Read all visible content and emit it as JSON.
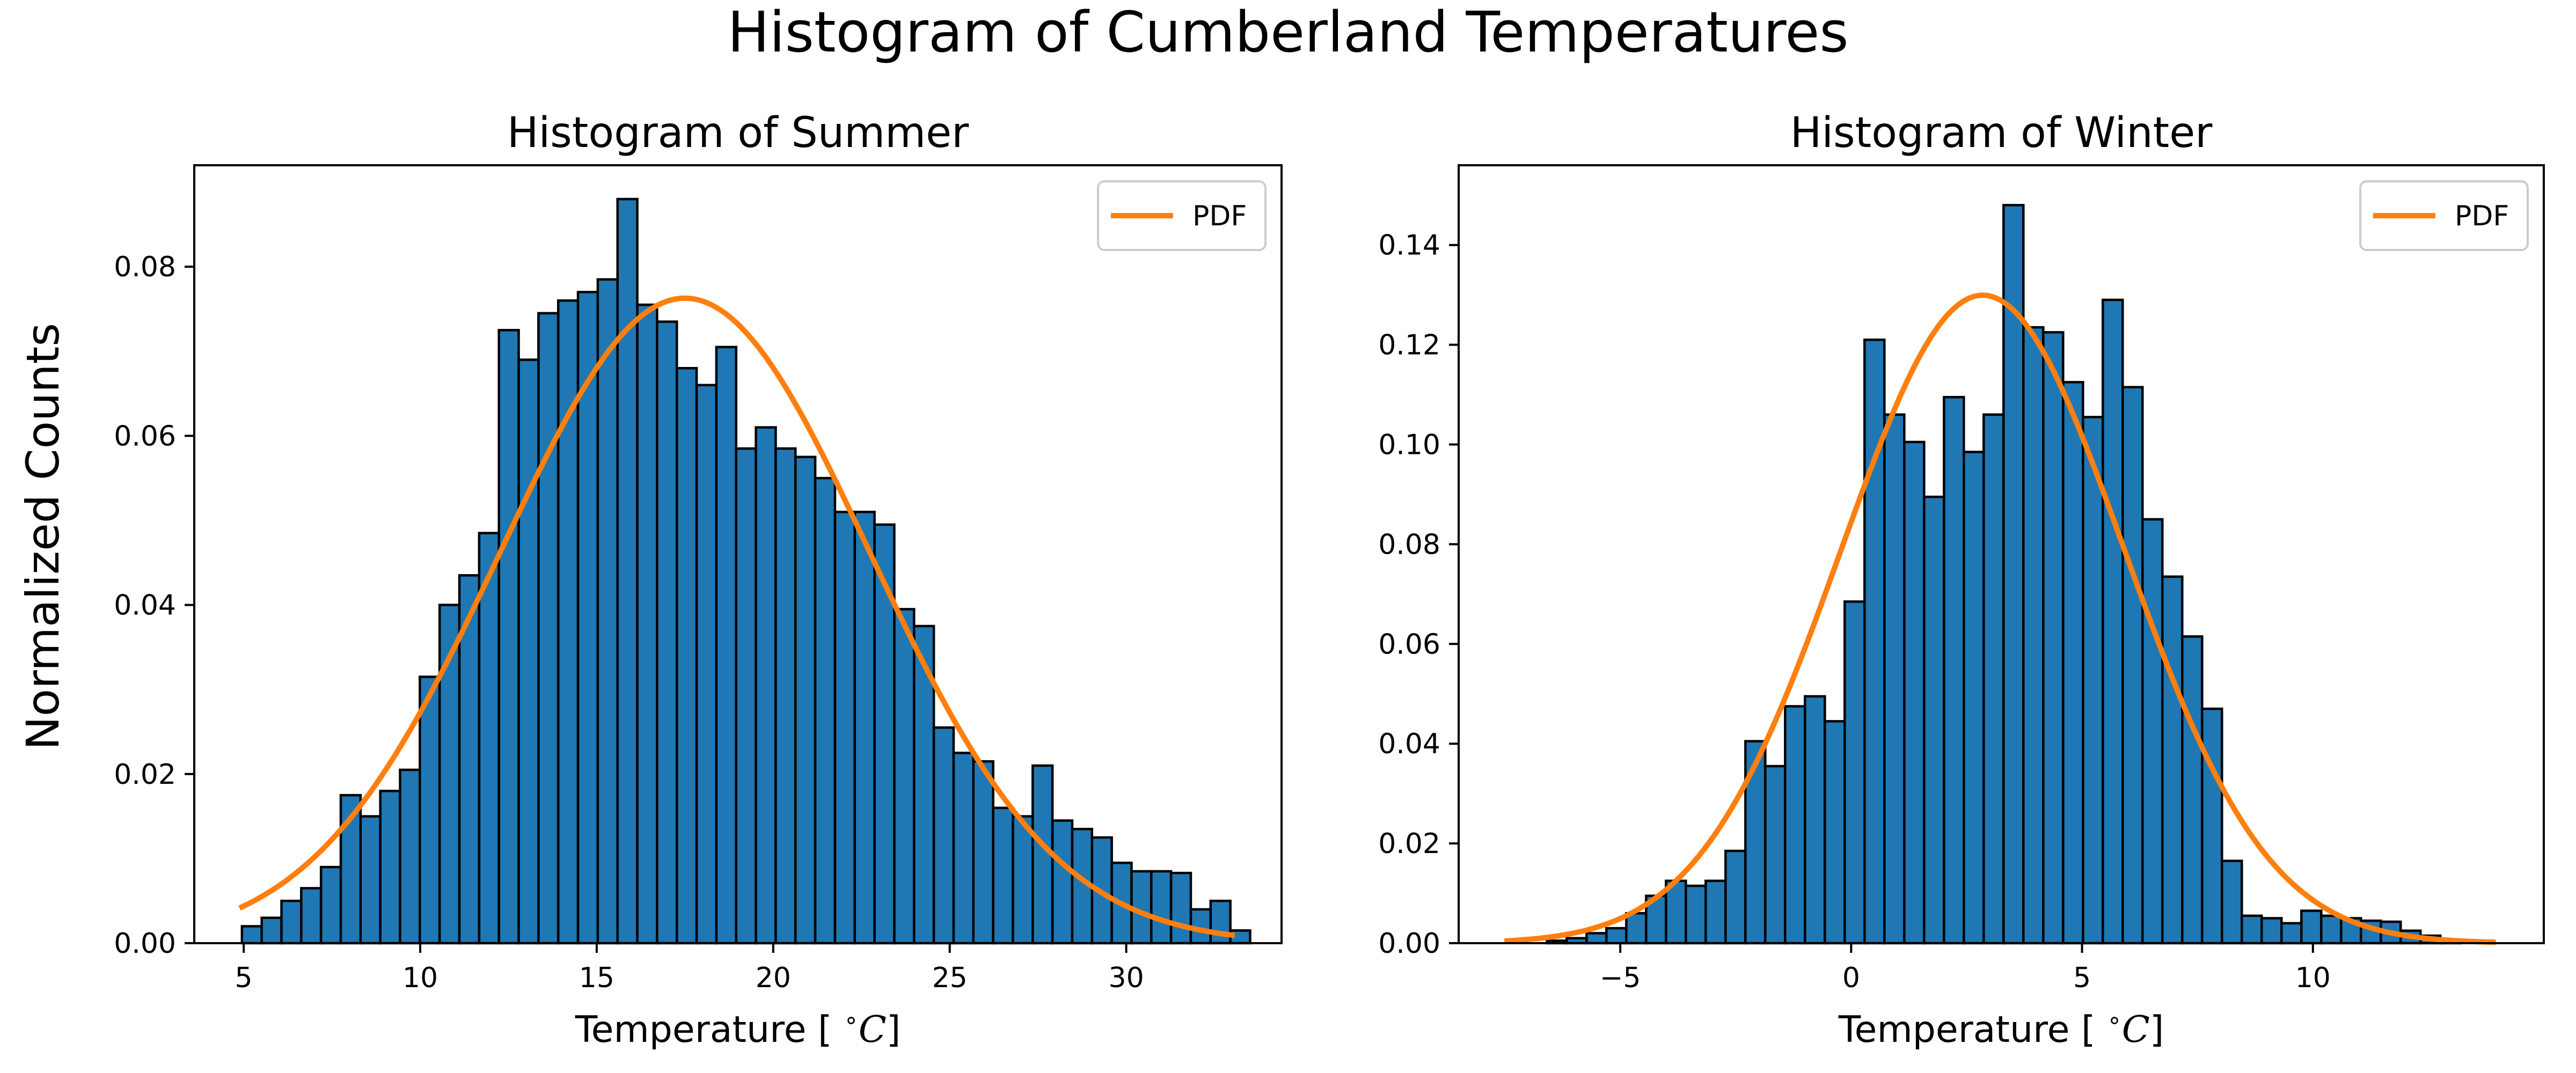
{
  "figure_title": "Histogram of Cumberland Temperatures",
  "shared_ylabel": "Normalized Counts",
  "colors": {
    "bar_fill": "#1f77b4",
    "bar_edge": "#000000",
    "pdf_line": "#ff7f0e"
  },
  "chart_data": [
    {
      "type": "bar",
      "title": "Histogram of Summer",
      "xlabel": "Temperature [$^\\circ C$]",
      "xlabel_display": "Temperature [ ",
      "xlabel_sup": "∘",
      "xlabel_tail": "C",
      "xlabel_close": "]",
      "ylabel": "Normalized Counts",
      "xlim": [
        3.6,
        34.4
      ],
      "ylim": [
        0,
        0.092
      ],
      "xticks": [
        5,
        10,
        15,
        20,
        25,
        30
      ],
      "xtick_labels": [
        "5",
        "10",
        "15",
        "20",
        "25",
        "30"
      ],
      "yticks": [
        0,
        0.02,
        0.04,
        0.06,
        0.08
      ],
      "ytick_labels": [
        "0.00",
        "0.02",
        "0.04",
        "0.06",
        "0.08"
      ],
      "bin_start": 4.95,
      "bin_width": 0.56,
      "values": [
        0.002,
        0.003,
        0.005,
        0.0065,
        0.009,
        0.0175,
        0.015,
        0.018,
        0.0205,
        0.0315,
        0.04,
        0.0435,
        0.0485,
        0.0725,
        0.069,
        0.0745,
        0.076,
        0.077,
        0.0785,
        0.088,
        0.0755,
        0.0735,
        0.068,
        0.066,
        0.0705,
        0.0585,
        0.061,
        0.0585,
        0.0575,
        0.055,
        0.051,
        0.051,
        0.0495,
        0.0395,
        0.0375,
        0.0255,
        0.0225,
        0.0215,
        0.016,
        0.015,
        0.021,
        0.0145,
        0.0135,
        0.0125,
        0.0095,
        0.0085,
        0.0085,
        0.0083,
        0.004,
        0.005,
        0.0015
      ],
      "pdf": {
        "label": "PDF",
        "mean": 17.5,
        "std": 5.23,
        "x_range": [
          4.95,
          33.0
        ]
      },
      "legend": {
        "entries": [
          "PDF"
        ],
        "placement": "upper right"
      }
    },
    {
      "type": "bar",
      "title": "Histogram of Winter",
      "xlabel": "Temperature [$^\\circ C$]",
      "xlabel_display": "Temperature [ ",
      "xlabel_sup": "∘",
      "xlabel_tail": "C",
      "xlabel_close": "]",
      "ylabel": "Normalized Counts",
      "xlim": [
        -8.5,
        15.0
      ],
      "ylim": [
        0,
        0.156
      ],
      "xticks": [
        -5,
        0,
        5,
        10
      ],
      "xtick_labels": [
        "−5",
        "0",
        "5",
        "10"
      ],
      "yticks": [
        0,
        0.02,
        0.04,
        0.06,
        0.08,
        0.1,
        0.12,
        0.14
      ],
      "ytick_labels": [
        "0.00",
        "0.02",
        "0.04",
        "0.06",
        "0.08",
        "0.10",
        "0.12",
        "0.14"
      ],
      "bin_start": -7.45,
      "bin_width": 0.43,
      "values": [
        0.0,
        0.0,
        0.0005,
        0.001,
        0.002,
        0.003,
        0.006,
        0.0095,
        0.0125,
        0.0115,
        0.0125,
        0.0185,
        0.0405,
        0.0355,
        0.0475,
        0.0495,
        0.0445,
        0.0685,
        0.121,
        0.106,
        0.1005,
        0.0895,
        0.1095,
        0.0985,
        0.106,
        0.148,
        0.1235,
        0.1225,
        0.1125,
        0.1055,
        0.129,
        0.1115,
        0.085,
        0.0735,
        0.0615,
        0.047,
        0.0165,
        0.0055,
        0.005,
        0.004,
        0.0065,
        0.0055,
        0.005,
        0.0045,
        0.0043,
        0.0025,
        0.0015,
        0.0005
      ],
      "pdf": {
        "label": "PDF",
        "mean": 2.85,
        "std": 3.07,
        "x_range": [
          -7.45,
          13.9
        ]
      },
      "legend": {
        "entries": [
          "PDF"
        ],
        "placement": "upper right"
      }
    }
  ]
}
